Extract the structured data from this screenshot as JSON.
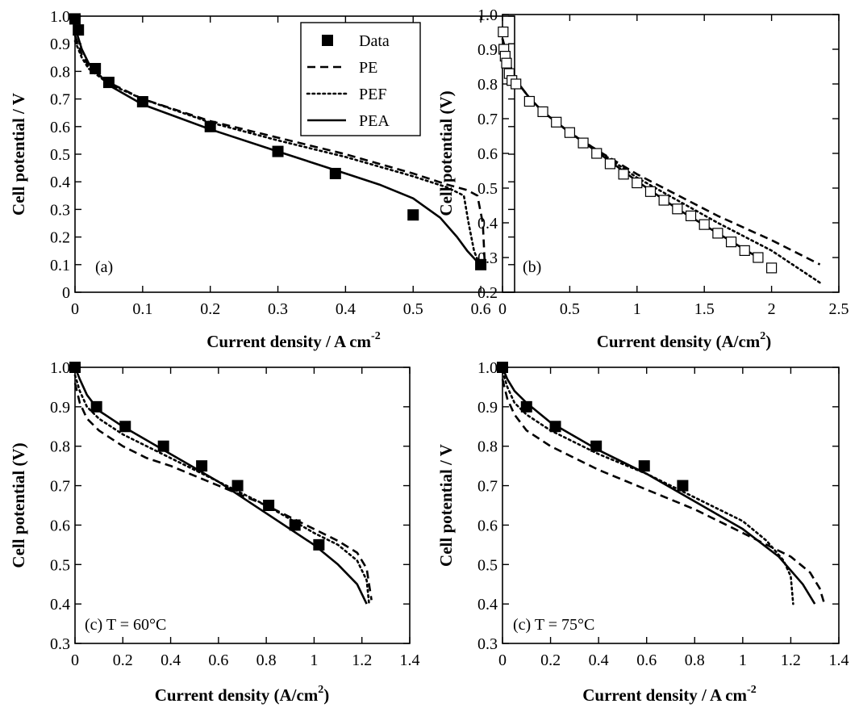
{
  "chart_data": [
    {
      "type": "line",
      "panel_label": "(a)",
      "xlabel": "Current density / A cm",
      "xlabel_sup": "-2",
      "ylabel": "Cell potential / V",
      "xlim": [
        0,
        0.65
      ],
      "ylim": [
        0,
        1.0
      ],
      "xticks": [
        "0",
        "0.1",
        "0.2",
        "0.3",
        "0.4",
        "0.5",
        "0.6"
      ],
      "yticks": [
        "0",
        "0.1",
        "0.2",
        "0.3",
        "0.4",
        "0.5",
        "0.6",
        "0.7",
        "0.8",
        "0.9",
        "1.0"
      ],
      "legend": {
        "placement": "top-right",
        "entries": [
          "Data",
          "PE",
          "PEF",
          "PEA"
        ]
      },
      "scatter": {
        "name": "Data",
        "marker": "filled-square",
        "x": [
          0,
          0.005,
          0.03,
          0.05,
          0.1,
          0.2,
          0.3,
          0.385,
          0.5,
          0.6
        ],
        "y": [
          0.99,
          0.95,
          0.81,
          0.76,
          0.69,
          0.6,
          0.51,
          0.43,
          0.28,
          0.1
        ]
      },
      "series": [
        {
          "name": "PE",
          "style": "dashed",
          "x": [
            0,
            0.01,
            0.02,
            0.05,
            0.1,
            0.2,
            0.3,
            0.4,
            0.5,
            0.55,
            0.58,
            0.595,
            0.603,
            0.606
          ],
          "y": [
            0.93,
            0.86,
            0.82,
            0.76,
            0.7,
            0.62,
            0.56,
            0.5,
            0.43,
            0.39,
            0.37,
            0.35,
            0.25,
            0.1
          ]
        },
        {
          "name": "PEF",
          "style": "dotted",
          "x": [
            0,
            0.01,
            0.02,
            0.05,
            0.1,
            0.2,
            0.3,
            0.4,
            0.5,
            0.55,
            0.575,
            0.582,
            0.59,
            0.598
          ],
          "y": [
            0.91,
            0.85,
            0.81,
            0.755,
            0.7,
            0.615,
            0.55,
            0.49,
            0.42,
            0.38,
            0.35,
            0.25,
            0.15,
            0.1
          ]
        },
        {
          "name": "PEA",
          "style": "solid",
          "x": [
            0,
            0.01,
            0.02,
            0.05,
            0.1,
            0.2,
            0.3,
            0.4,
            0.45,
            0.5,
            0.54,
            0.565,
            0.58,
            0.595,
            0.6
          ],
          "y": [
            0.96,
            0.88,
            0.83,
            0.75,
            0.68,
            0.59,
            0.51,
            0.43,
            0.39,
            0.34,
            0.27,
            0.2,
            0.15,
            0.11,
            0.1
          ]
        }
      ]
    },
    {
      "type": "line",
      "panel_label": "(b)",
      "xlabel": "Current density (A/cm",
      "xlabel_sup": "2",
      "xlabel_suffix": ")",
      "ylabel": "Cell potential (V)",
      "xlim": [
        0,
        2.5
      ],
      "ylim": [
        0.2,
        1.0
      ],
      "xticks": [
        "0",
        "0.5",
        "1",
        "1.5",
        "2",
        "2.5"
      ],
      "yticks": [
        "0.2",
        "0.3",
        "0.4",
        "0.5",
        "0.6",
        "0.7",
        "0.8",
        "0.9",
        "1.0"
      ],
      "scatter": {
        "name": "Data",
        "marker": "open-square",
        "x": [
          0.005,
          0.01,
          0.02,
          0.03,
          0.05,
          0.07,
          0.1,
          0.2,
          0.3,
          0.4,
          0.5,
          0.6,
          0.7,
          0.8,
          0.9,
          1.0,
          1.1,
          1.2,
          1.3,
          1.4,
          1.5,
          1.6,
          1.7,
          1.8,
          1.9,
          2.0
        ],
        "y": [
          0.95,
          0.9,
          0.88,
          0.86,
          0.83,
          0.81,
          0.8,
          0.75,
          0.72,
          0.69,
          0.66,
          0.63,
          0.6,
          0.57,
          0.54,
          0.515,
          0.49,
          0.465,
          0.44,
          0.42,
          0.395,
          0.37,
          0.345,
          0.32,
          0.3,
          0.27
        ]
      },
      "series": [
        {
          "name": "PE",
          "style": "dashed",
          "x": [
            0,
            0.05,
            0.1,
            0.2,
            0.3,
            0.5,
            0.7,
            1.0,
            1.3,
            1.6,
            2.0,
            2.36
          ],
          "y": [
            0.93,
            0.86,
            0.81,
            0.76,
            0.72,
            0.66,
            0.61,
            0.54,
            0.48,
            0.42,
            0.35,
            0.28
          ]
        },
        {
          "name": "PEF",
          "style": "dotted",
          "x": [
            0,
            0.05,
            0.1,
            0.2,
            0.3,
            0.5,
            0.7,
            1.0,
            1.3,
            1.6,
            2.0,
            2.37
          ],
          "y": [
            0.93,
            0.86,
            0.81,
            0.76,
            0.72,
            0.66,
            0.61,
            0.53,
            0.465,
            0.4,
            0.32,
            0.225
          ]
        },
        {
          "name": "PEA",
          "style": "solid",
          "x": [
            0,
            0.05,
            0.1,
            0.2,
            0.3,
            0.5,
            0.7,
            1.0,
            1.3,
            1.6,
            1.9
          ],
          "y": [
            0.93,
            0.86,
            0.81,
            0.76,
            0.72,
            0.66,
            0.605,
            0.52,
            0.44,
            0.37,
            0.3
          ]
        }
      ]
    },
    {
      "type": "line",
      "panel_label": "(c) T = 60°C",
      "xlabel": "Current density (A/cm",
      "xlabel_sup": "2",
      "xlabel_suffix": ")",
      "ylabel": "Cell potential (V)",
      "xlim": [
        0,
        1.4
      ],
      "ylim": [
        0.3,
        1.0
      ],
      "xticks": [
        "0",
        "0.2",
        "0.4",
        "0.6",
        "0.8",
        "1",
        "1.2",
        "1.4"
      ],
      "yticks": [
        "0.3",
        "0.4",
        "0.5",
        "0.6",
        "0.7",
        "0.8",
        "0.9",
        "1.0"
      ],
      "scatter": {
        "name": "Data",
        "marker": "filled-square",
        "x": [
          0,
          0.09,
          0.21,
          0.37,
          0.53,
          0.68,
          0.81,
          0.92,
          1.02
        ],
        "y": [
          1.0,
          0.9,
          0.85,
          0.8,
          0.75,
          0.7,
          0.65,
          0.6,
          0.55
        ]
      },
      "series": [
        {
          "name": "PE",
          "style": "dashed",
          "x": [
            0,
            0.02,
            0.05,
            0.1,
            0.2,
            0.3,
            0.4,
            0.6,
            0.8,
            1.0,
            1.1,
            1.18,
            1.22,
            1.24
          ],
          "y": [
            0.96,
            0.91,
            0.87,
            0.84,
            0.8,
            0.77,
            0.75,
            0.7,
            0.65,
            0.59,
            0.56,
            0.53,
            0.49,
            0.41
          ]
        },
        {
          "name": "PEF",
          "style": "dotted",
          "x": [
            0,
            0.02,
            0.05,
            0.1,
            0.2,
            0.4,
            0.6,
            0.8,
            1.0,
            1.1,
            1.18,
            1.22,
            1.23
          ],
          "y": [
            0.98,
            0.94,
            0.9,
            0.87,
            0.83,
            0.77,
            0.71,
            0.65,
            0.58,
            0.55,
            0.51,
            0.46,
            0.4
          ]
        },
        {
          "name": "PEA",
          "style": "solid",
          "x": [
            0,
            0.02,
            0.05,
            0.1,
            0.2,
            0.4,
            0.6,
            0.8,
            1.0,
            1.1,
            1.18,
            1.22
          ],
          "y": [
            1.0,
            0.97,
            0.93,
            0.89,
            0.85,
            0.78,
            0.71,
            0.63,
            0.55,
            0.5,
            0.45,
            0.4
          ]
        }
      ]
    },
    {
      "type": "line",
      "panel_label": "(c) T = 75°C",
      "xlabel": "Current density / A cm",
      "xlabel_sup": "-2",
      "ylabel": "Cell potential / V",
      "xlim": [
        0,
        1.4
      ],
      "ylim": [
        0.3,
        1.0
      ],
      "xticks": [
        "0",
        "0.2",
        "0.4",
        "0.6",
        "0.8",
        "1",
        "1.2",
        "1.4"
      ],
      "yticks": [
        "0.3",
        "0.4",
        "0.5",
        "0.6",
        "0.7",
        "0.8",
        "0.9",
        "1.0"
      ],
      "scatter": {
        "name": "Data",
        "marker": "filled-square",
        "x": [
          0,
          0.1,
          0.22,
          0.39,
          0.59,
          0.75
        ],
        "y": [
          1.0,
          0.9,
          0.85,
          0.8,
          0.75,
          0.7
        ]
      },
      "series": [
        {
          "name": "PE",
          "style": "dashed",
          "x": [
            0,
            0.02,
            0.05,
            0.1,
            0.2,
            0.4,
            0.6,
            0.8,
            1.0,
            1.2,
            1.28,
            1.32,
            1.34
          ],
          "y": [
            0.97,
            0.92,
            0.88,
            0.84,
            0.8,
            0.74,
            0.69,
            0.64,
            0.58,
            0.52,
            0.48,
            0.44,
            0.4
          ]
        },
        {
          "name": "PEF",
          "style": "dotted",
          "x": [
            0,
            0.02,
            0.05,
            0.1,
            0.2,
            0.4,
            0.6,
            0.8,
            1.0,
            1.1,
            1.17,
            1.2,
            1.21
          ],
          "y": [
            0.99,
            0.95,
            0.91,
            0.88,
            0.84,
            0.78,
            0.73,
            0.67,
            0.61,
            0.56,
            0.51,
            0.47,
            0.4
          ]
        },
        {
          "name": "PEA",
          "style": "solid",
          "x": [
            0,
            0.02,
            0.05,
            0.1,
            0.2,
            0.4,
            0.6,
            0.8,
            1.0,
            1.15,
            1.25,
            1.3
          ],
          "y": [
            1.0,
            0.97,
            0.94,
            0.91,
            0.86,
            0.79,
            0.73,
            0.66,
            0.59,
            0.52,
            0.45,
            0.4
          ]
        }
      ]
    }
  ]
}
